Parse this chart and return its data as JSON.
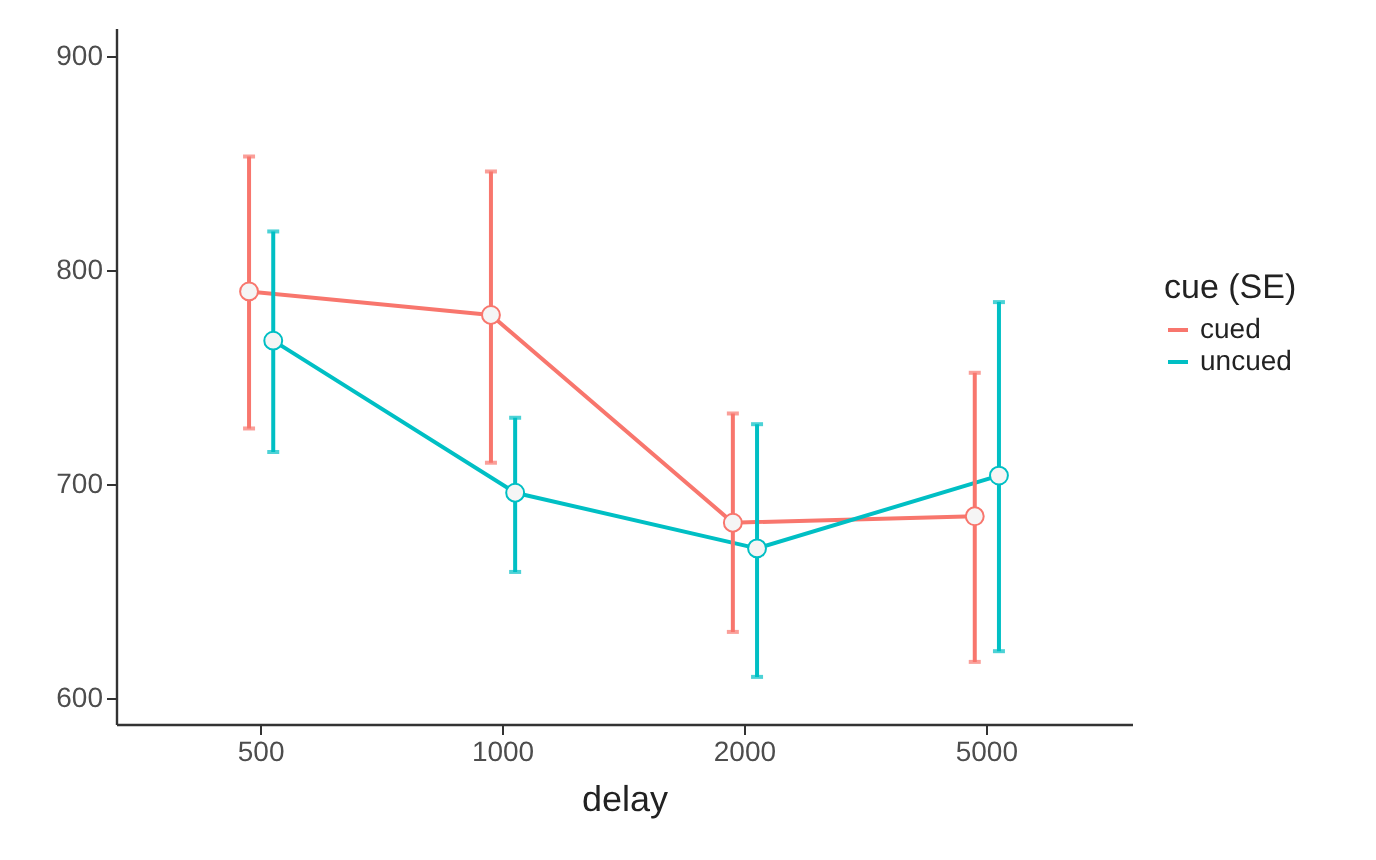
{
  "chart_data": {
    "type": "line",
    "xlabel": "delay",
    "legend_title": "cue (SE)",
    "categories": [
      "500",
      "1000",
      "2000",
      "5000"
    ],
    "series": [
      {
        "name": "cued",
        "color": "#f8766d",
        "values": [
          790,
          779,
          682,
          685
        ],
        "errors": [
          [
            726,
            853
          ],
          [
            710,
            846
          ],
          [
            631,
            733
          ],
          [
            617,
            752
          ]
        ]
      },
      {
        "name": "uncued",
        "color": "#00bfc4",
        "values": [
          767,
          696,
          670,
          704
        ],
        "errors": [
          [
            715,
            818
          ],
          [
            659,
            731
          ],
          [
            610,
            728
          ],
          [
            622,
            785
          ]
        ]
      }
    ],
    "ylim": [
      588,
      913
    ],
    "yticks": [
      600,
      700,
      800,
      900
    ],
    "grid": false,
    "legend": "right",
    "marker": "circle",
    "line_style": "solid"
  }
}
